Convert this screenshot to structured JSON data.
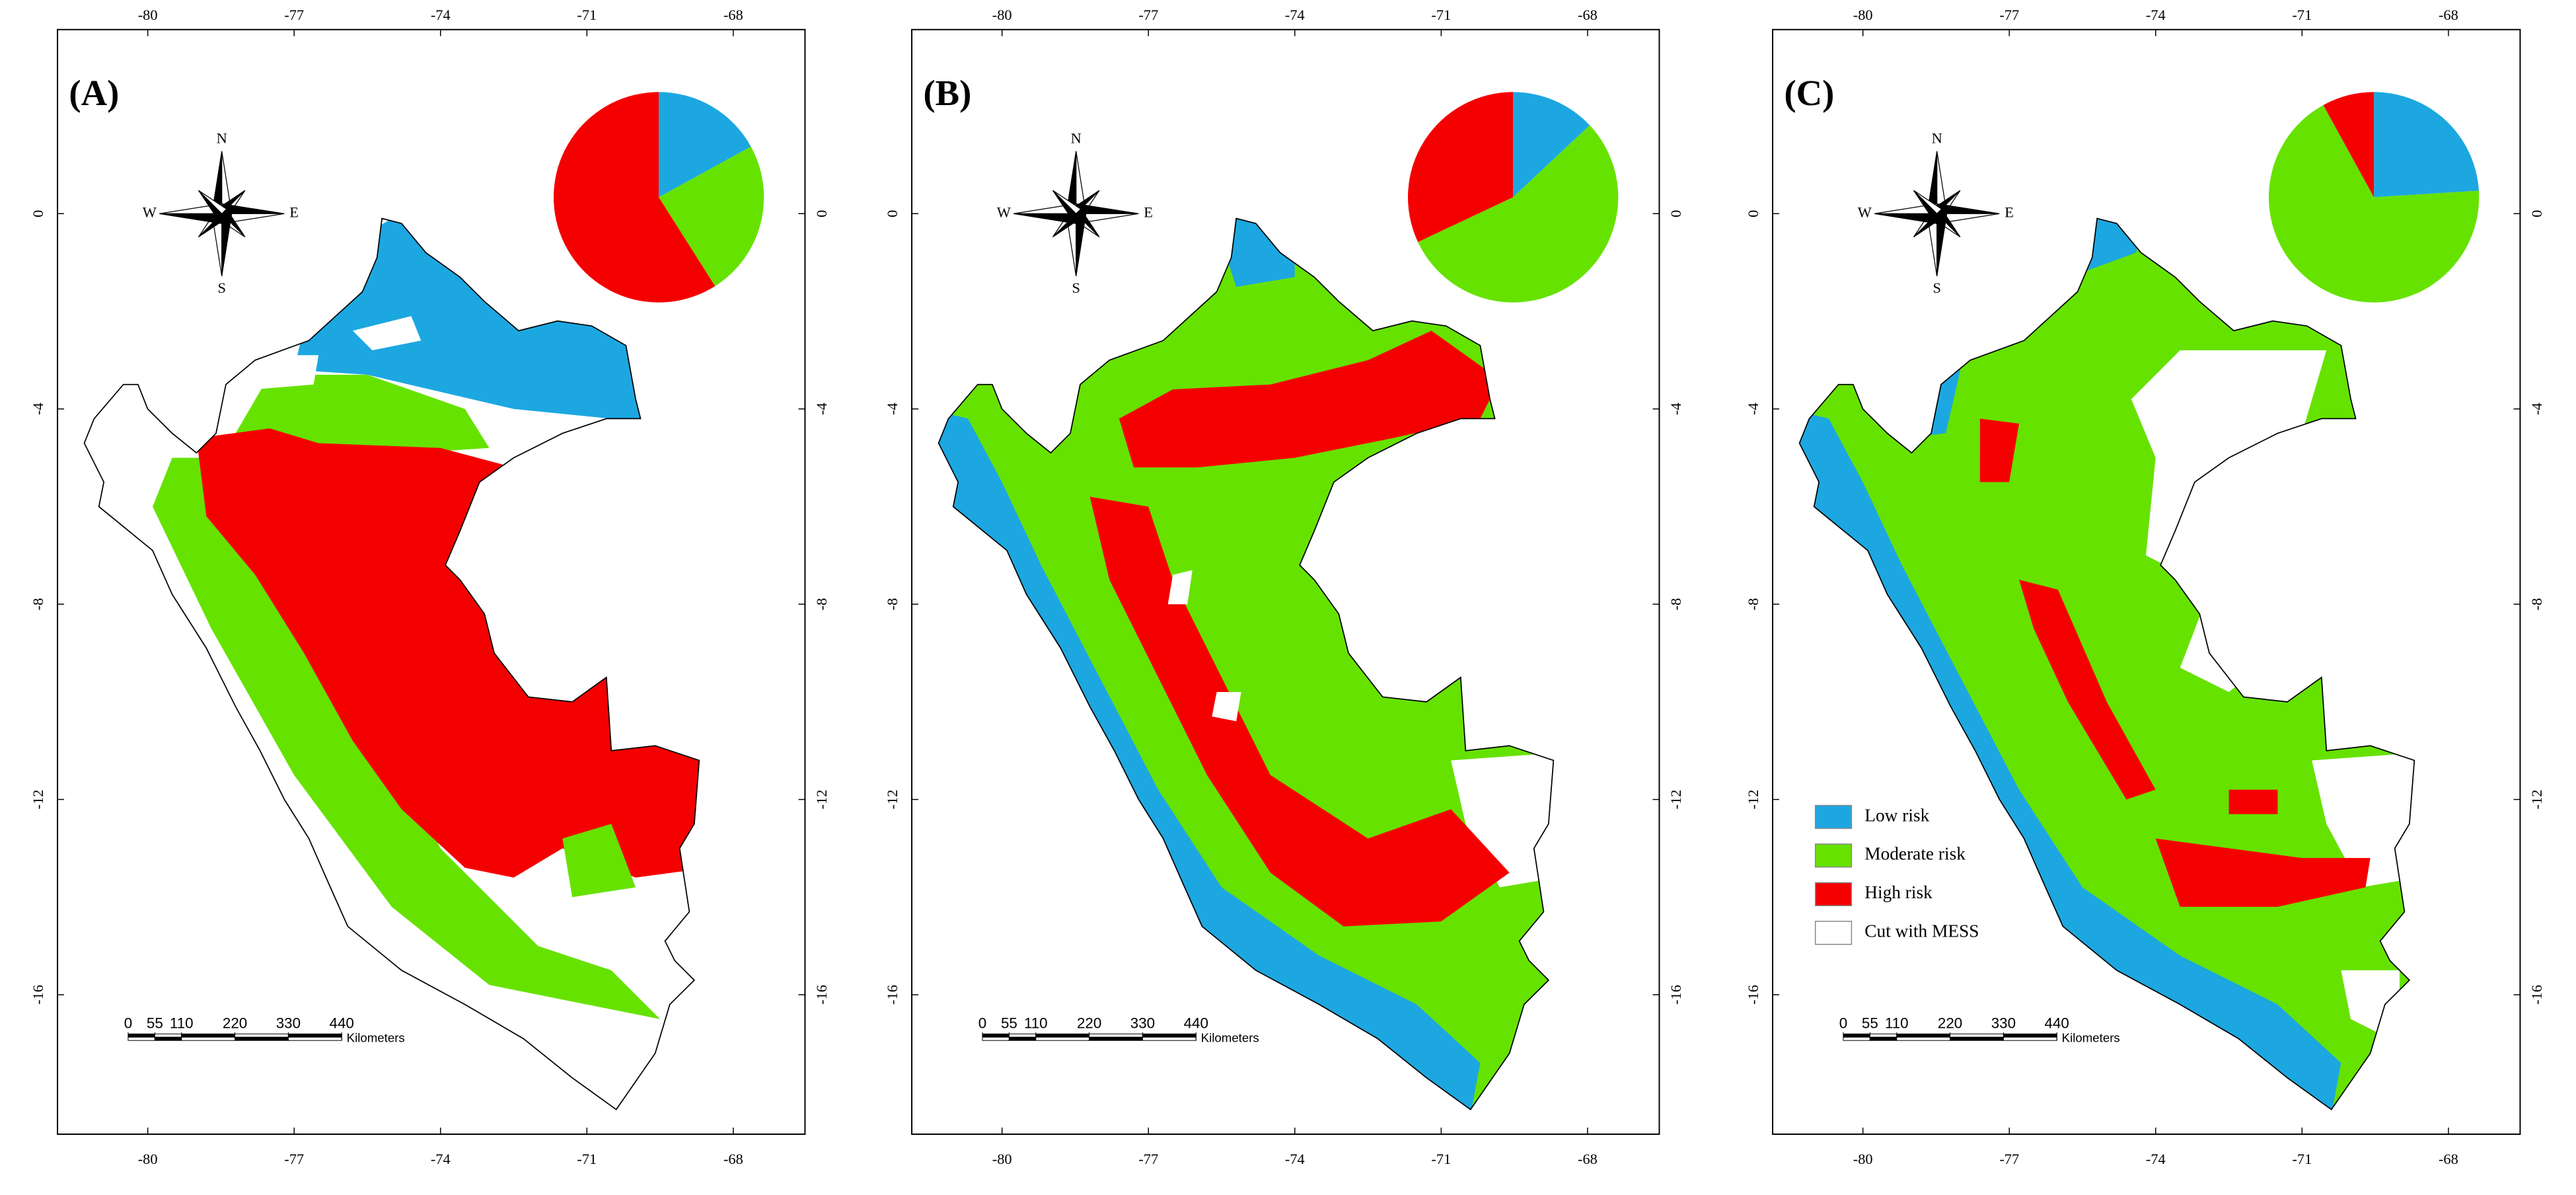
{
  "legend": [
    {
      "name": "Low risk",
      "color": "#1ca7e1"
    },
    {
      "name": "Moderate risk",
      "color": "#66e200"
    },
    {
      "name": "High risk",
      "color": "#f50000"
    },
    {
      "name": "Cut with MESS",
      "color": "#ffffff"
    }
  ],
  "axes": {
    "lon_ticks": [
      -80,
      -77,
      -74,
      -71,
      -68
    ],
    "lat_ticks": [
      0,
      -4,
      -8,
      -12,
      -16
    ]
  },
  "compass": {
    "north": "N",
    "east": "E",
    "south": "S",
    "west": "W"
  },
  "scale_bar": {
    "ticks": [
      0,
      55,
      110,
      220,
      330,
      440
    ],
    "unit": "Kilometers"
  },
  "panels": [
    {
      "label": "(A)",
      "pie": [
        17,
        24,
        59
      ]
    },
    {
      "label": "(B)",
      "pie": [
        13,
        55,
        32
      ]
    },
    {
      "label": "(C)",
      "pie": [
        24,
        68,
        8
      ]
    }
  ]
}
